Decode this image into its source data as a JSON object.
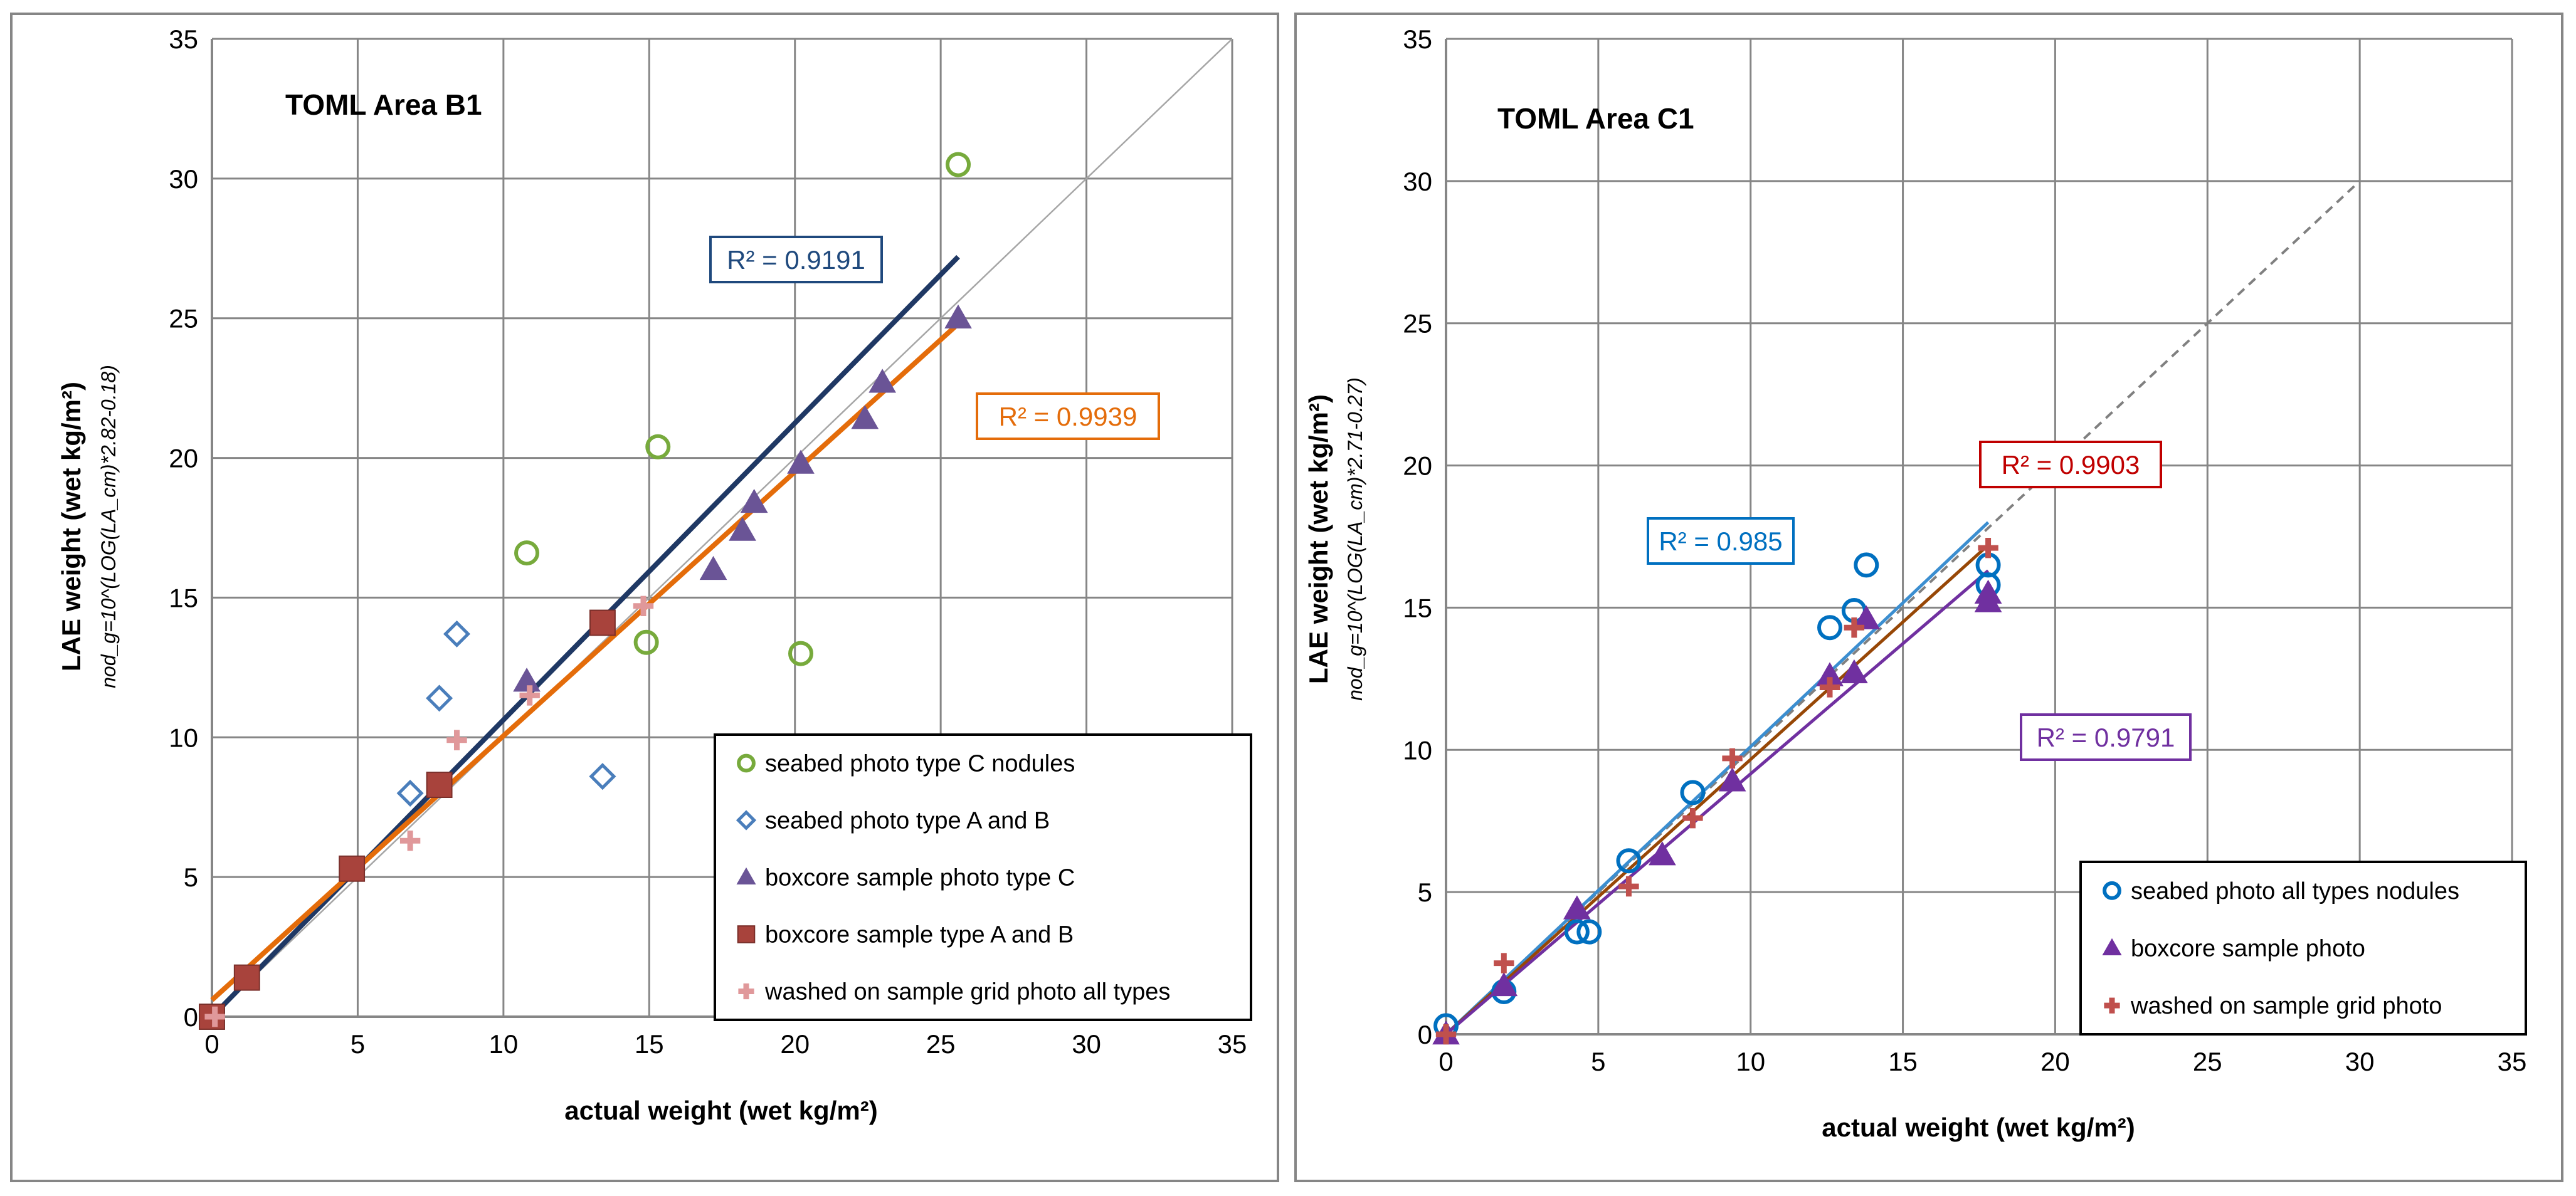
{
  "chart_data": [
    {
      "type": "scatter",
      "title": "TOML Area B1",
      "xlabel": "actual weight (wet kg/m²)",
      "ylabel": "LAE weight (wet kg/m²)",
      "ylabel_sub": "nod_g=10^(LOG(LA_cm)*2.82-0.18)",
      "xlim": [
        0,
        35
      ],
      "ylim": [
        0,
        35
      ],
      "xticks": [
        "0",
        "5",
        "10",
        "15",
        "20",
        "25",
        "30",
        "35"
      ],
      "yticks": [
        "0",
        "5",
        "10",
        "15",
        "20",
        "25",
        "30",
        "35"
      ],
      "series": [
        {
          "name": "seabed photo type C nodules",
          "marker": "circle-open",
          "color": "#77AA3C",
          "x": [
            10.8,
            15.3,
            14.9,
            20.2,
            25.6
          ],
          "y": [
            16.6,
            20.4,
            13.4,
            13.0,
            30.5
          ]
        },
        {
          "name": "seabed photo type A and B",
          "marker": "diamond-open",
          "color": "#4A7EBB",
          "x": [
            6.8,
            7.8,
            8.4,
            13.4
          ],
          "y": [
            8.0,
            11.4,
            13.7,
            8.6
          ]
        },
        {
          "name": "boxcore sample photo type C",
          "marker": "triangle",
          "color": "#6A5496",
          "x": [
            10.8,
            17.2,
            18.2,
            18.6,
            20.2,
            22.4,
            23.0,
            25.6
          ],
          "y": [
            12.0,
            16.0,
            17.4,
            18.4,
            19.8,
            21.4,
            22.7,
            25.0
          ]
        },
        {
          "name": "boxcore sample type A and B",
          "marker": "square",
          "color": "#A8433C",
          "x": [
            0.0,
            1.2,
            4.8,
            7.8,
            13.4
          ],
          "y": [
            0.0,
            1.4,
            5.3,
            8.3,
            14.1
          ]
        },
        {
          "name": "washed on sample grid photo all types",
          "marker": "plus",
          "color": "#E0989A",
          "x": [
            0.1,
            6.8,
            8.4,
            10.9,
            14.8
          ],
          "y": [
            0.0,
            6.3,
            9.9,
            11.5,
            14.7
          ]
        }
      ],
      "trendlines": [
        {
          "x": [
            0,
            25.6
          ],
          "y": [
            0.0,
            27.2
          ],
          "color": "#1F3864"
        },
        {
          "x": [
            0,
            25.6
          ],
          "y": [
            0.6,
            24.8
          ],
          "color": "#E46C0A"
        }
      ],
      "reference_line": {
        "x": [
          0,
          35
        ],
        "y": [
          0,
          35
        ],
        "color": "#A6A6A6"
      },
      "r2_labels": [
        {
          "text": "R² = 0.9191",
          "color": "#1F497D",
          "at_x": 18.1,
          "at_y": 27.0
        },
        {
          "text": "R² = 0.9939",
          "color": "#E46C0A",
          "at_x": 27.1,
          "at_y": 21.5
        }
      ],
      "legend_position": "bottom-right"
    },
    {
      "type": "scatter",
      "title": "TOML Area C1",
      "xlabel": "actual weight (wet kg/m²)",
      "ylabel": "LAE weight (wet kg/m²)",
      "ylabel_sub": "nod_g=10^(LOG(LA_cm)*2.71-0.27)",
      "xlim": [
        0,
        35
      ],
      "ylim": [
        0,
        35
      ],
      "xticks": [
        "0",
        "5",
        "10",
        "15",
        "20",
        "25",
        "30",
        "35"
      ],
      "yticks": [
        "0",
        "5",
        "10",
        "15",
        "20",
        "25",
        "30",
        "35"
      ],
      "series": [
        {
          "name": "seabed photo all types nodules",
          "marker": "circle-open",
          "color": "#0070C0",
          "x": [
            0.0,
            1.9,
            4.3,
            4.7,
            6.0,
            8.1,
            12.6,
            13.4,
            13.8,
            17.8,
            17.8
          ],
          "y": [
            0.3,
            1.5,
            3.6,
            3.6,
            6.1,
            8.5,
            14.3,
            14.9,
            16.5,
            15.8,
            16.5
          ]
        },
        {
          "name": "boxcore sample photo",
          "marker": "triangle",
          "color": "#7030A0",
          "x": [
            0.0,
            1.9,
            4.3,
            7.1,
            9.4,
            12.6,
            13.4,
            13.8,
            17.8,
            17.8
          ],
          "y": [
            0.0,
            1.7,
            4.4,
            6.3,
            8.9,
            12.6,
            12.7,
            14.6,
            15.2,
            15.5
          ]
        },
        {
          "name": "washed on sample grid photo",
          "marker": "plus",
          "color": "#C0504D",
          "x": [
            0.0,
            1.9,
            6.0,
            8.1,
            9.4,
            12.6,
            13.4,
            17.8
          ],
          "y": [
            0.0,
            2.5,
            5.2,
            7.6,
            9.7,
            12.2,
            14.3,
            17.1
          ]
        }
      ],
      "trendlines": [
        {
          "x": [
            0,
            17.8
          ],
          "y": [
            0.0,
            18.0
          ],
          "color": "#3B8ED0"
        },
        {
          "x": [
            0,
            17.8
          ],
          "y": [
            0.0,
            17.2
          ],
          "color": "#974706"
        },
        {
          "x": [
            0,
            17.8
          ],
          "y": [
            0.0,
            16.3
          ],
          "color": "#7030A0"
        }
      ],
      "reference_line": {
        "x": [
          0,
          30
        ],
        "y": [
          0,
          30
        ],
        "color": "#808080",
        "dashed": true
      },
      "r2_labels": [
        {
          "text": "R² = 0.985",
          "color": "#0070C0",
          "at_x": 9.2,
          "at_y": 17.3
        },
        {
          "text": "R² = 0.9903",
          "color": "#C00000",
          "at_x": 19.8,
          "at_y": 20.0
        },
        {
          "text": "R² = 0.9791",
          "color": "#7030A0",
          "at_x": 20.0,
          "at_y": 10.5
        }
      ],
      "legend_position": "bottom-right"
    }
  ]
}
